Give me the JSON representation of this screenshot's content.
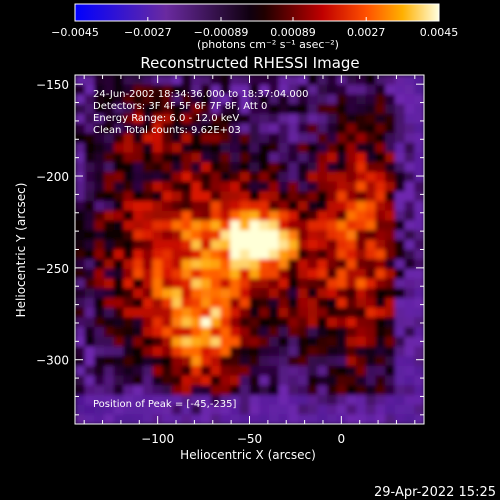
{
  "colorbar": {
    "tick_labels": [
      "−0.0045",
      "−0.0027",
      "−0.00089",
      "0.00089",
      "0.0027",
      "0.0045"
    ],
    "unit_label": "(photons cm⁻² s⁻¹ asec⁻²)"
  },
  "chart_data": {
    "type": "heatmap",
    "title": "Reconstructed RHESSI Image",
    "xlabel": "Heliocentric X (arcsec)",
    "ylabel": "Heliocentric Y (arcsec)",
    "xlim": [
      -145,
      45
    ],
    "ylim": [
      -335,
      -145
    ],
    "x_ticks": [
      -100,
      -50,
      0
    ],
    "x_tick_labels": [
      "−100",
      "−50",
      "0"
    ],
    "y_ticks": [
      -150,
      -200,
      -250,
      -300
    ],
    "y_tick_labels": [
      "−150",
      "−200",
      "−250",
      "−300"
    ],
    "zlim": [
      -0.0045,
      0.0045
    ],
    "colormap": "purple-black-red-yellow-white",
    "peak": [
      -45,
      -235
    ],
    "annotations": [
      "24-Jun-2002 18:34:36.000 to 18:37:04.000",
      "Detectors: 3F 4F 5F 6F 7F 8F, Att 0",
      "Energy Range: 6.0 - 12.0 keV",
      "Clean     Total counts: 9.62E+03"
    ],
    "peak_label": "Position of Peak = [-45,-235]"
  },
  "footer": {
    "timestamp": "29-Apr-2022 15:25"
  }
}
